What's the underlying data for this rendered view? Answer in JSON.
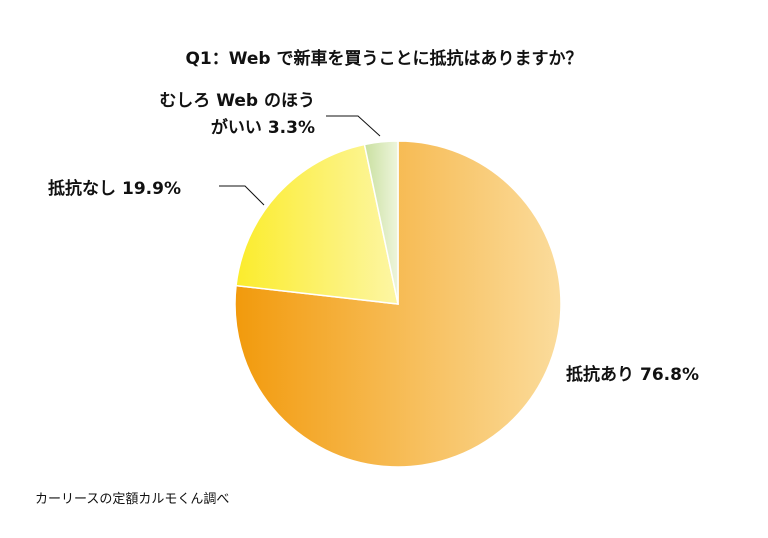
{
  "chart_data": {
    "type": "pie",
    "title": "Q1：Web で新車を買うことに抵抗はありますか？",
    "categories": [
      "抵抗あり",
      "抵抗なし",
      "むしろ Web のほうがいい"
    ],
    "values": [
      76.8,
      19.9,
      3.3
    ],
    "value_labels": [
      "76.8%",
      "19.9%",
      "3.3%"
    ],
    "colors": [
      [
        "#f29a0c",
        "#fbdc9c"
      ],
      [
        "#fbec2c",
        "#fdf6a4"
      ],
      [
        "#c9e0a0",
        "#eef5dc"
      ]
    ],
    "source": "カーリースの定額カルモくん調べ"
  }
}
